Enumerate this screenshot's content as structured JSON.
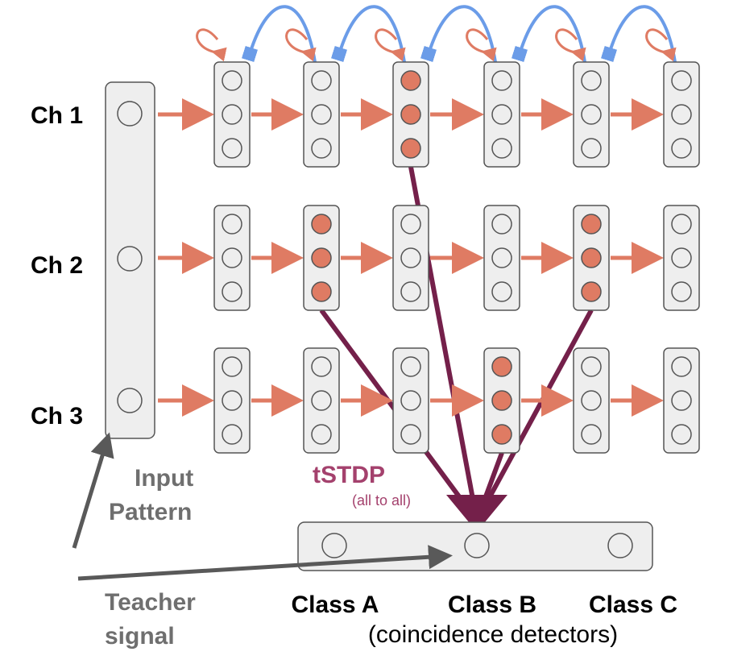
{
  "channels": [
    "Ch 1",
    "Ch 2",
    "Ch 3"
  ],
  "input": {
    "line1": "Input",
    "line2": "Pattern"
  },
  "teacher": {
    "line1": "Teacher",
    "line2": "signal"
  },
  "learning_rule": {
    "title": "tSTDP",
    "subtitle": "(all to all)"
  },
  "classes": [
    "Class A",
    "Class B",
    "Class C"
  ],
  "classes_caption": "(coincidence detectors)",
  "active_units": [
    {
      "channel": 1,
      "stage": 3
    },
    {
      "channel": 2,
      "stage": 2
    },
    {
      "channel": 2,
      "stage": 5
    },
    {
      "channel": 3,
      "stage": 4
    }
  ],
  "colors": {
    "active_fill": "#df7b63",
    "feedforward_arrow": "#df7b63",
    "recurrent_arrow": "#6b9ce8",
    "tstdp_arrow": "#74204a",
    "tstdp_label": "#a4416d",
    "teacher_arrow": "#595959",
    "muted_text": "#6f6f6f",
    "box_fill": "#eeeeee",
    "box_stroke": "#555555"
  }
}
